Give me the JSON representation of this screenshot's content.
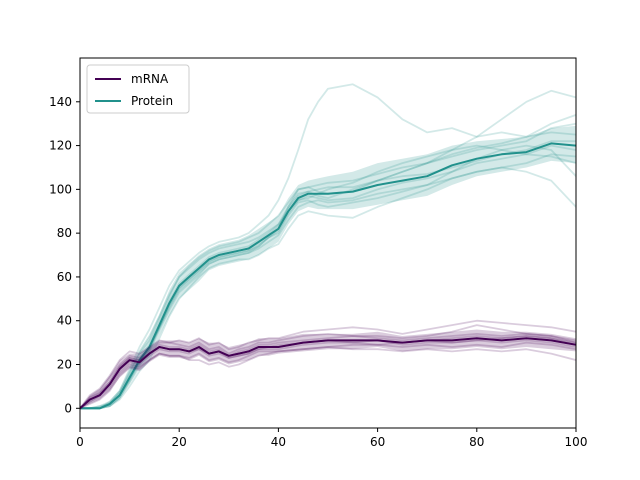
{
  "chart_data": {
    "type": "line",
    "title": "",
    "xlabel": "",
    "ylabel": "",
    "xlim": [
      0,
      100
    ],
    "ylim": [
      -9,
      160
    ],
    "x_ticks": [
      0,
      20,
      40,
      60,
      80,
      100
    ],
    "y_ticks": [
      0,
      20,
      40,
      60,
      80,
      100,
      120,
      140
    ],
    "legend": {
      "position": "top-left",
      "entries": [
        "mRNA",
        "Protein"
      ]
    },
    "grid": false,
    "series": [
      {
        "name": "mRNA",
        "color": "#440154",
        "mean": {
          "x": [
            0,
            2,
            4,
            6,
            8,
            10,
            12,
            14,
            16,
            18,
            20,
            22,
            24,
            26,
            28,
            30,
            32,
            34,
            36,
            38,
            40,
            45,
            50,
            55,
            60,
            65,
            70,
            75,
            80,
            85,
            90,
            95,
            100
          ],
          "y": [
            0,
            4,
            6,
            11,
            18,
            22,
            21,
            25,
            28,
            27,
            27,
            26,
            28,
            25,
            26,
            24,
            25,
            26,
            28,
            28,
            28,
            30,
            31,
            31,
            31,
            30,
            31,
            31,
            32,
            31,
            32,
            31,
            29
          ]
        },
        "band_upper": [
          0,
          6,
          9,
          15,
          22,
          25,
          25,
          28,
          31,
          31,
          31,
          30,
          32,
          30,
          30,
          28,
          29,
          30,
          32,
          32,
          32,
          34,
          34,
          34,
          35,
          33,
          34,
          35,
          36,
          35,
          35,
          34,
          32
        ],
        "band_lower": [
          0,
          2,
          4,
          8,
          14,
          18,
          17,
          21,
          24,
          23,
          23,
          22,
          24,
          21,
          22,
          20,
          21,
          22,
          24,
          24,
          25,
          26,
          27,
          27,
          28,
          26,
          27,
          27,
          28,
          27,
          28,
          27,
          26
        ],
        "trajectories": [
          [
            0,
            5,
            8,
            14,
            20,
            24,
            23,
            27,
            30,
            30,
            29,
            28,
            30,
            27,
            28,
            25,
            27,
            28,
            30,
            30,
            31,
            33,
            34,
            33,
            33,
            32,
            33,
            35,
            38,
            36,
            34,
            33,
            31
          ],
          [
            0,
            3,
            5,
            9,
            16,
            20,
            19,
            22,
            25,
            24,
            24,
            23,
            25,
            22,
            23,
            21,
            22,
            24,
            26,
            26,
            26,
            27,
            28,
            29,
            29,
            28,
            29,
            28,
            29,
            28,
            30,
            29,
            27
          ],
          [
            0,
            4,
            7,
            12,
            19,
            23,
            22,
            26,
            29,
            28,
            28,
            27,
            29,
            26,
            27,
            24,
            26,
            27,
            29,
            29,
            30,
            31,
            32,
            33,
            32,
            31,
            32,
            33,
            34,
            33,
            34,
            33,
            30
          ],
          [
            0,
            2,
            4,
            8,
            15,
            19,
            18,
            22,
            25,
            24,
            24,
            22,
            22,
            20,
            21,
            19,
            20,
            22,
            24,
            25,
            26,
            27,
            28,
            27,
            27,
            26,
            27,
            26,
            27,
            26,
            27,
            25,
            22
          ],
          [
            0,
            6,
            9,
            15,
            22,
            26,
            25,
            28,
            31,
            30,
            31,
            30,
            32,
            29,
            30,
            27,
            28,
            30,
            31,
            32,
            32,
            35,
            36,
            37,
            36,
            34,
            36,
            38,
            40,
            39,
            38,
            37,
            35
          ],
          [
            0,
            4,
            6,
            10,
            17,
            21,
            20,
            24,
            27,
            26,
            26,
            25,
            27,
            24,
            25,
            23,
            24,
            25,
            27,
            27,
            27,
            29,
            30,
            30,
            31,
            29,
            30,
            30,
            31,
            30,
            31,
            30,
            28
          ],
          [
            0,
            3,
            6,
            11,
            18,
            22,
            21,
            25,
            28,
            27,
            27,
            26,
            28,
            25,
            26,
            24,
            25,
            26,
            28,
            28,
            29,
            30,
            31,
            31,
            31,
            30,
            31,
            32,
            33,
            32,
            33,
            32,
            30
          ],
          [
            0,
            5,
            7,
            12,
            19,
            23,
            22,
            25,
            28,
            27,
            27,
            26,
            27,
            25,
            26,
            23,
            24,
            25,
            27,
            28,
            28,
            30,
            31,
            30,
            29,
            30,
            31,
            30,
            31,
            32,
            33,
            32,
            29
          ]
        ]
      },
      {
        "name": "Protein",
        "color": "#21918c",
        "mean": {
          "x": [
            0,
            2,
            4,
            6,
            8,
            10,
            12,
            14,
            16,
            18,
            20,
            22,
            24,
            26,
            28,
            30,
            32,
            34,
            36,
            38,
            40,
            42,
            44,
            46,
            48,
            50,
            55,
            60,
            65,
            70,
            75,
            80,
            85,
            90,
            95,
            100
          ],
          "y": [
            0,
            0,
            0,
            2,
            6,
            14,
            22,
            28,
            38,
            48,
            56,
            60,
            64,
            68,
            70,
            71,
            72,
            73,
            76,
            79,
            82,
            90,
            96,
            98,
            98,
            98,
            99,
            102,
            104,
            106,
            111,
            114,
            116,
            117,
            121,
            120
          ],
          "band_upper": [
            0,
            0,
            1,
            3,
            8,
            17,
            26,
            33,
            43,
            54,
            62,
            66,
            70,
            73,
            75,
            76,
            77,
            79,
            82,
            85,
            88,
            96,
            102,
            104,
            105,
            106,
            108,
            112,
            114,
            116,
            120,
            122,
            123,
            124,
            128,
            129
          ],
          "band_lower": [
            0,
            0,
            0,
            1,
            4,
            11,
            18,
            23,
            33,
            42,
            50,
            54,
            58,
            63,
            65,
            66,
            67,
            68,
            70,
            73,
            76,
            84,
            90,
            92,
            91,
            91,
            91,
            93,
            95,
            97,
            102,
            106,
            108,
            110,
            113,
            112
          ]
        },
        "trajectories": [
          [
            0,
            0,
            0,
            3,
            8,
            18,
            28,
            36,
            46,
            56,
            63,
            67,
            71,
            74,
            76,
            77,
            78,
            80,
            84,
            88,
            95,
            105,
            118,
            132,
            140,
            146,
            148,
            142,
            132,
            126,
            128,
            124,
            126,
            124,
            126,
            125
          ],
          [
            0,
            0,
            1,
            2,
            6,
            14,
            21,
            27,
            37,
            46,
            54,
            58,
            62,
            66,
            68,
            69,
            70,
            71,
            74,
            78,
            82,
            92,
            100,
            101,
            99,
            98,
            99,
            104,
            108,
            112,
            118,
            124,
            132,
            140,
            145,
            142
          ],
          [
            0,
            0,
            0,
            1,
            4,
            10,
            17,
            22,
            32,
            42,
            50,
            55,
            60,
            64,
            66,
            67,
            68,
            68,
            70,
            73,
            75,
            82,
            88,
            90,
            89,
            88,
            87,
            92,
            96,
            100,
            105,
            108,
            110,
            112,
            116,
            115
          ],
          [
            0,
            0,
            0,
            2,
            7,
            16,
            25,
            31,
            41,
            51,
            60,
            64,
            68,
            71,
            73,
            74,
            75,
            76,
            78,
            81,
            84,
            90,
            95,
            96,
            98,
            100,
            103,
            108,
            112,
            115,
            118,
            120,
            118,
            116,
            115,
            112
          ],
          [
            0,
            0,
            0,
            1,
            5,
            12,
            20,
            26,
            36,
            45,
            53,
            57,
            61,
            66,
            68,
            69,
            70,
            71,
            73,
            76,
            79,
            86,
            92,
            94,
            95,
            94,
            95,
            98,
            100,
            102,
            105,
            108,
            110,
            108,
            104,
            92
          ],
          [
            0,
            0,
            1,
            3,
            8,
            17,
            26,
            33,
            42,
            52,
            60,
            65,
            69,
            72,
            74,
            75,
            76,
            78,
            80,
            84,
            88,
            94,
            100,
            101,
            102,
            103,
            104,
            107,
            110,
            112,
            115,
            118,
            120,
            122,
            128,
            130
          ],
          [
            0,
            0,
            0,
            2,
            6,
            13,
            21,
            28,
            38,
            48,
            56,
            60,
            64,
            68,
            70,
            71,
            72,
            73,
            76,
            79,
            83,
            91,
            97,
            99,
            100,
            101,
            101,
            104,
            106,
            107,
            110,
            113,
            116,
            118,
            122,
            122
          ],
          [
            0,
            0,
            0,
            1,
            5,
            13,
            22,
            28,
            37,
            47,
            55,
            59,
            63,
            67,
            69,
            70,
            71,
            72,
            74,
            78,
            80,
            88,
            94,
            95,
            93,
            92,
            94,
            96,
            99,
            102,
            108,
            114,
            118,
            120,
            118,
            106
          ],
          [
            0,
            0,
            0,
            2,
            7,
            15,
            23,
            29,
            39,
            49,
            57,
            61,
            65,
            69,
            71,
            72,
            73,
            74,
            77,
            80,
            84,
            92,
            98,
            99,
            97,
            96,
            100,
            104,
            108,
            112,
            116,
            119,
            121,
            124,
            130,
            134
          ],
          [
            0,
            0,
            0,
            2,
            6,
            14,
            22,
            27,
            37,
            47,
            55,
            59,
            63,
            67,
            69,
            70,
            71,
            72,
            75,
            78,
            81,
            89,
            95,
            97,
            96,
            95,
            96,
            100,
            103,
            105,
            108,
            112,
            114,
            116,
            120,
            118
          ]
        ]
      }
    ]
  }
}
